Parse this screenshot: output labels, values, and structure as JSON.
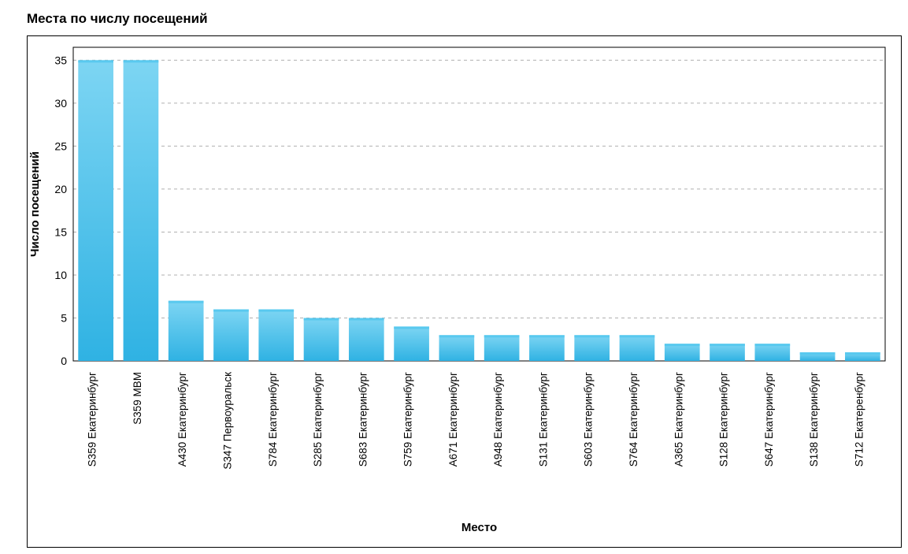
{
  "chart": {
    "type": "bar",
    "title": "Места по числу посещений",
    "title_fontsize": 17,
    "title_fontweight": "bold",
    "title_color": "#000000",
    "background_color": "#ffffff",
    "outer_border_color": "#000000",
    "plot_border_color": "#000000",
    "grid_color": "#b0b0b0",
    "grid_dash": "4 4",
    "xlabel": "Место",
    "ylabel": "Число посещений",
    "axis_label_fontsize": 15,
    "axis_label_fontweight": "bold",
    "tick_fontsize": 14,
    "category_label_fontsize": 13.5,
    "ylim": [
      0,
      36.5
    ],
    "yticks": [
      0,
      5,
      10,
      15,
      20,
      25,
      30,
      35
    ],
    "bar_width_ratio": 0.78,
    "bar_gradient_top": "#7dd5f3",
    "bar_gradient_bottom": "#2fb2e3",
    "bar_top_highlight": "#59c9ef",
    "categories": [
      "S359 Екатеринбург",
      "S359 МВМ",
      "A430 Екатеринбург",
      "S347 Первоуральск",
      "S784 Екатеринбург",
      "S285 Екатеринбург",
      "S683 Екатеринбург",
      "S759 Екатеринбург",
      "A671 Екатеринбург",
      "A948 Екатеринбург",
      "S131 Екатеринбург",
      "S603 Екатеринбург",
      "S764 Екатеринбург",
      "A365 Екатеринбург",
      "S128 Екатеринбург",
      "S647 Екатеринбург",
      "S138 Екатеринбург",
      "S712 Екатеренбург"
    ],
    "values": [
      35,
      35,
      7,
      6,
      6,
      5,
      5,
      4,
      3,
      3,
      3,
      3,
      3,
      2,
      2,
      2,
      1,
      1
    ]
  }
}
